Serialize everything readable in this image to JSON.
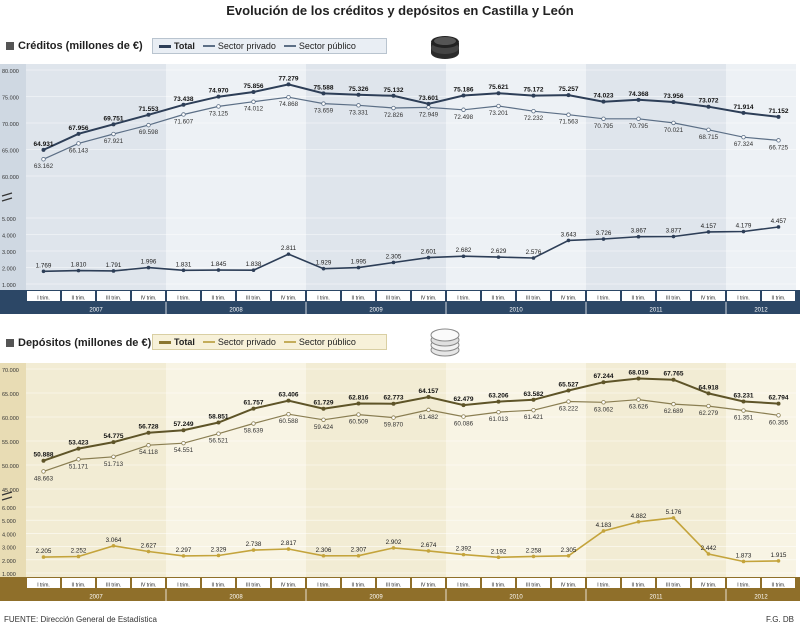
{
  "title": "Evolución de los créditos y depósitos en Castilla y León",
  "footer": {
    "source": "FUENTE: Dirección General de Estadística",
    "credit": "F.G. DB"
  },
  "colors": {
    "credit_line": "#2d3e57",
    "credit_sub": "#5c6f86",
    "deposit_line": "#8a7630",
    "deposit_sub": "#c4ad5a",
    "credit_band": "#2c4766",
    "deposit_band": "#8f6f2a"
  },
  "chart_data": [
    {
      "type": "line",
      "title": "Créditos (millones de €)",
      "legend": [
        "Total",
        "Sector privado",
        "Sector público"
      ],
      "categories": [
        "I trim.",
        "II trim.",
        "III trim.",
        "IV trim.",
        "I trim.",
        "II trim.",
        "III trim.",
        "IV trim.",
        "I trim.",
        "II trim.",
        "III trim.",
        "IV trim.",
        "I trim.",
        "II trim.",
        "III trim.",
        "IV trim.",
        "I trim.",
        "II trim.",
        "III trim.",
        "IV trim.",
        "I trim.",
        "II trim."
      ],
      "years": [
        {
          "label": "2007",
          "span": 4
        },
        {
          "label": "2008",
          "span": 4
        },
        {
          "label": "2009",
          "span": 4
        },
        {
          "label": "2010",
          "span": 4
        },
        {
          "label": "2011",
          "span": 4
        },
        {
          "label": "2012",
          "span": 2
        }
      ],
      "series": [
        {
          "name": "Total",
          "values": [
            64931,
            67956,
            69751,
            71553,
            73438,
            74970,
            75856,
            77279,
            75588,
            75326,
            75132,
            73601,
            75186,
            75621,
            75172,
            75257,
            74023,
            74368,
            73956,
            73072,
            71914,
            71152
          ],
          "labels": [
            "64.931",
            "67.956",
            "69.751",
            "71.553",
            "73.438",
            "74.970",
            "75.856",
            "77.279",
            "75.588",
            "75.326",
            "75.132",
            "73.601",
            "75.186",
            "75.621",
            "75.172",
            "75.257",
            "74.023",
            "74.368",
            "73.956",
            "73.072",
            "71.914",
            "71.152"
          ]
        },
        {
          "name": "Sector privado",
          "values": [
            63162,
            66143,
            67921,
            69598,
            71607,
            73125,
            74012,
            74868,
            73659,
            73331,
            72826,
            72949,
            72498,
            73201,
            72232,
            71563,
            70795,
            70795,
            70021,
            68715,
            67324,
            66725
          ],
          "labels": [
            "63.162",
            "66.143",
            "67.921",
            "69.598",
            "71.607",
            "73.125",
            "74.012",
            "74.868",
            "73.659",
            "73.331",
            "72.826",
            "72.949",
            "72.498",
            "73.201",
            "72.232",
            "71.563",
            "70.795",
            "70.795",
            "70.021",
            "68.715",
            "67.324",
            "66.725"
          ]
        },
        {
          "name": "Sector público",
          "values": [
            1769,
            1810,
            1791,
            1996,
            1831,
            1845,
            1838,
            2811,
            1929,
            1995,
            2305,
            2601,
            2682,
            2629,
            2576,
            3643,
            3726,
            3867,
            3877,
            4157,
            4179,
            4457
          ],
          "labels": [
            "1.769",
            "1.810",
            "1.791",
            "1.996",
            "1.831",
            "1.845",
            "1.838",
            "2.811",
            "1.929",
            "1.995",
            "2.305",
            "2.601",
            "2.682",
            "2.629",
            "2.576",
            "3.643",
            "3.726",
            "3.867",
            "3.877",
            "4.157",
            "4.179",
            "4.457"
          ]
        }
      ],
      "upper_axis": {
        "ylim": [
          60000,
          80000
        ],
        "ticks": [
          "60.000",
          "65.000",
          "70.000",
          "75.000",
          "80.000"
        ]
      },
      "lower_axis": {
        "ylim": [
          1000,
          5000
        ],
        "ticks": [
          "1.000",
          "2.000",
          "3.000",
          "4.000",
          "5.000"
        ]
      }
    },
    {
      "type": "line",
      "title": "Depósitos (millones de €)",
      "legend": [
        "Total",
        "Sector privado",
        "Sector público"
      ],
      "categories": [
        "I trim.",
        "II trim.",
        "III trim.",
        "IV trim.",
        "I trim.",
        "II trim.",
        "III trim.",
        "IV trim.",
        "I trim.",
        "II trim.",
        "III trim.",
        "IV trim.",
        "I trim.",
        "II trim.",
        "III trim.",
        "IV trim.",
        "I trim.",
        "II trim.",
        "III trim.",
        "IV trim.",
        "I trim.",
        "II trim."
      ],
      "years": [
        {
          "label": "2007",
          "span": 4
        },
        {
          "label": "2008",
          "span": 4
        },
        {
          "label": "2009",
          "span": 4
        },
        {
          "label": "2010",
          "span": 4
        },
        {
          "label": "2011",
          "span": 4
        },
        {
          "label": "2012",
          "span": 2
        }
      ],
      "series": [
        {
          "name": "Total",
          "values": [
            50888,
            53423,
            54775,
            56728,
            57249,
            58851,
            61757,
            63406,
            61729,
            62816,
            62773,
            64157,
            62479,
            63206,
            63582,
            65527,
            67244,
            68019,
            67765,
            64918,
            63231,
            62794
          ],
          "labels": [
            "50.888",
            "53.423",
            "54.775",
            "56.728",
            "57.249",
            "58.851",
            "61.757",
            "63.406",
            "61.729",
            "62.816",
            "62.773",
            "64.157",
            "62.479",
            "63.206",
            "63.582",
            "65.527",
            "67.244",
            "68.019",
            "67.765",
            "64.918",
            "63.231",
            "62.794"
          ]
        },
        {
          "name": "Sector privado",
          "values": [
            48663,
            51171,
            51713,
            54118,
            54551,
            56521,
            58639,
            60588,
            59424,
            60509,
            59870,
            61482,
            60086,
            61013,
            61421,
            63222,
            63062,
            63626,
            62689,
            62279,
            61351,
            60355
          ],
          "labels": [
            "48.663",
            "51.171",
            "51.713",
            "54.118",
            "54.551",
            "56.521",
            "58.639",
            "60.588",
            "59.424",
            "60.509",
            "59.870",
            "61.482",
            "60.086",
            "61.013",
            "61.421",
            "63.222",
            "63.062",
            "63.626",
            "62.689",
            "62.279",
            "61.351",
            "60.355"
          ]
        },
        {
          "name": "Sector público",
          "values": [
            2205,
            2252,
            3064,
            2627,
            2297,
            2329,
            2738,
            2817,
            2306,
            2307,
            2902,
            2674,
            2392,
            2192,
            2258,
            2305,
            4183,
            4882,
            5176,
            2442,
            1873,
            1915
          ],
          "labels": [
            "2.205",
            "2.252",
            "3.064",
            "2.627",
            "2.297",
            "2.329",
            "2.738",
            "2.817",
            "2.306",
            "2.307",
            "2.902",
            "2.674",
            "2.392",
            "2.192",
            "2.258",
            "2.305",
            "4.183",
            "4.882",
            "5.176",
            "2.442",
            "1.873",
            "1.915"
          ]
        }
      ],
      "upper_axis": {
        "ylim": [
          45000,
          70000
        ],
        "ticks": [
          "45.000",
          "50.000",
          "55.000",
          "60.000",
          "65.000",
          "70.000"
        ]
      },
      "lower_axis": {
        "ylim": [
          1000,
          6000
        ],
        "ticks": [
          "1.000",
          "2.000",
          "3.000",
          "4.000",
          "5.000",
          "6.000"
        ]
      }
    }
  ]
}
